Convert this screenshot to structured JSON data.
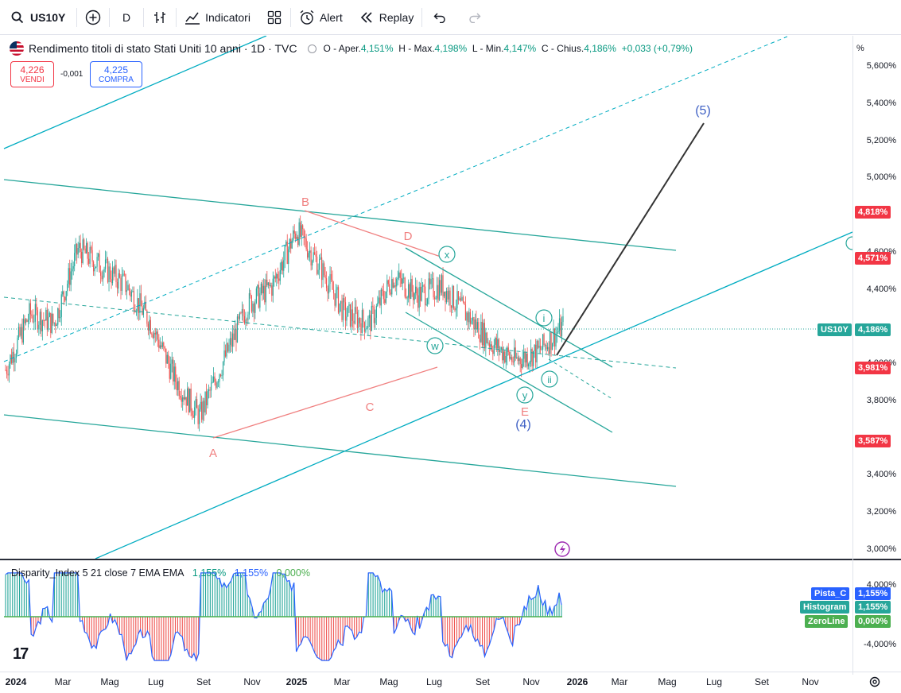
{
  "toolbar": {
    "symbol": "US10Y",
    "interval": "D",
    "indicators_label": "Indicatori",
    "alert_label": "Alert",
    "replay_label": "Replay",
    "icons": [
      "search-icon",
      "plus-circle-icon",
      "bar-style-icon",
      "indicators-icon",
      "layout-grid-icon",
      "alert-clock-icon",
      "replay-icon",
      "undo-icon",
      "redo-icon"
    ]
  },
  "legend": {
    "title": "Rendimento titoli di stato Stati Uniti 10 anni · 1D · TVC",
    "open_label": "O - Aper.",
    "open": "4,151%",
    "high_label": "H - Max.",
    "high": "4,198%",
    "low_label": "L - Min.",
    "low": "4,147%",
    "close_label": "C - Chius.",
    "close": "4,186%",
    "change": "+0,033 (+0,79%)"
  },
  "trade": {
    "sell_price": "4,226",
    "sell_label": "VENDI",
    "spread": "-0,001",
    "buy_price": "4,225",
    "buy_label": "COMPRA"
  },
  "price_axis": {
    "unit": "%",
    "labels": [
      "5,600%",
      "5,400%",
      "5,200%",
      "5,000%",
      "4,600%",
      "4,400%",
      "4,000%",
      "3,800%",
      "3,400%",
      "3,200%",
      "3,000%"
    ],
    "tags": {
      "t1": "4,818%",
      "t2": "4,571%",
      "current_symbol": "US10Y",
      "current": "4,186%",
      "t3": "3,981%",
      "t4": "3,587%"
    }
  },
  "sub_axis": {
    "labels": [
      "4,000%",
      "-4,000%"
    ]
  },
  "sub_pane": {
    "legend_name": "Disparity_Index 5 21 close 7 EMA EMA",
    "value1": "1,155%",
    "value2": "1,155%",
    "value3": "0,000%",
    "tags": [
      {
        "name": "Pista_C",
        "value": "1,155%"
      },
      {
        "name": "Histogram",
        "value": "1,155%"
      },
      {
        "name": "ZeroLine",
        "value": "0,000%"
      }
    ]
  },
  "time_axis": {
    "labels": [
      {
        "text": "2024",
        "bold": true
      },
      {
        "text": "Mar",
        "bold": false
      },
      {
        "text": "Mag",
        "bold": false
      },
      {
        "text": "Lug",
        "bold": false
      },
      {
        "text": "Set",
        "bold": false
      },
      {
        "text": "Nov",
        "bold": false
      },
      {
        "text": "2025",
        "bold": true
      },
      {
        "text": "Mar",
        "bold": false
      },
      {
        "text": "Mag",
        "bold": false
      },
      {
        "text": "Lug",
        "bold": false
      },
      {
        "text": "Set",
        "bold": false
      },
      {
        "text": "Nov",
        "bold": false
      },
      {
        "text": "2026",
        "bold": true
      },
      {
        "text": "Mar",
        "bold": false
      },
      {
        "text": "Mag",
        "bold": false
      },
      {
        "text": "Lug",
        "bold": false
      },
      {
        "text": "Set",
        "bold": false
      },
      {
        "text": "Nov",
        "bold": false
      }
    ]
  },
  "wave_labels": {
    "A": "A",
    "B": "B",
    "C": "C",
    "D": "D",
    "E": "E",
    "four": "(4)",
    "five": "(5)",
    "w": "w",
    "x": "x",
    "y": "y",
    "i": "i",
    "ii": "ii"
  },
  "colors": {
    "up": "#26a69a",
    "down": "#ef5350",
    "channel": "#26a69a",
    "cyan": "#00bcd4",
    "wave_red": "#f08080",
    "projection": "#333333",
    "wave_blue": "#3d5fc4"
  },
  "chart_data": {
    "type": "line",
    "x": [
      "2024-01",
      "2024-02",
      "2024-03",
      "2024-04",
      "2024-05",
      "2024-06",
      "2024-07",
      "2024-08",
      "2024-09",
      "2024-10",
      "2024-11",
      "2024-12",
      "2025-01",
      "2025-02",
      "2025-03",
      "2025-04",
      "2025-05",
      "2025-06",
      "2025-07",
      "2025-08",
      "2025-09",
      "2025-10",
      "2025-11",
      "2025-12"
    ],
    "series": [
      {
        "values": [
          3.95,
          4.25,
          4.2,
          4.6,
          4.5,
          4.4,
          4.2,
          3.9,
          3.7,
          4.0,
          4.3,
          4.4,
          4.7,
          4.5,
          4.25,
          4.2,
          4.45,
          4.35,
          4.4,
          4.25,
          4.1,
          4.0,
          4.05,
          4.186
        ]
      }
    ],
    "ylim": [
      2.95,
      5.7
    ],
    "pivots": [
      {
        "label": "A",
        "date": "2024-09",
        "value": 3.6
      },
      {
        "label": "B",
        "date": "2025-01",
        "value": 4.8
      },
      {
        "label": "C",
        "date": "2025-04",
        "value": 3.87
      },
      {
        "label": "D",
        "date": "2025-05",
        "value": 4.62
      },
      {
        "label": "E",
        "date": "2025-10",
        "value": 3.93
      }
    ],
    "projection": {
      "label": "(5)",
      "date": "2026-06",
      "value": 5.3
    },
    "sub_series": {
      "name": "Disparity_Index",
      "ylim": [
        -4.5,
        4.5
      ],
      "last": 1.155
    }
  }
}
